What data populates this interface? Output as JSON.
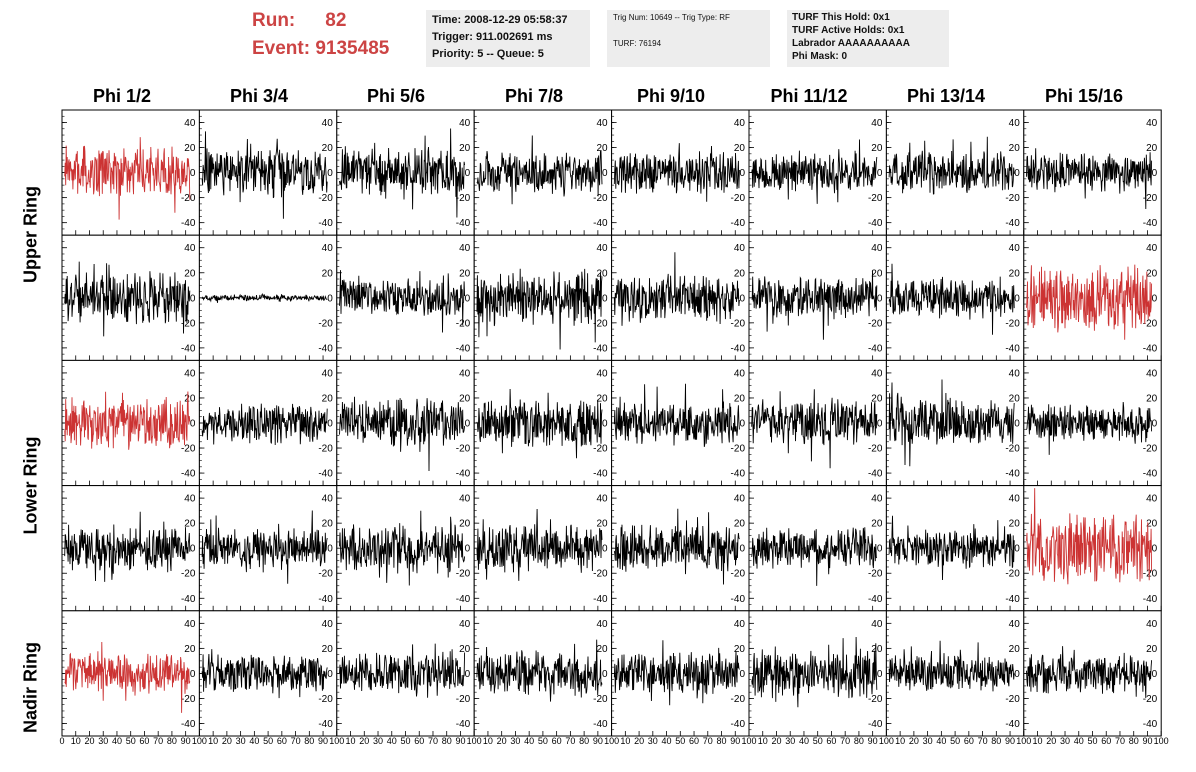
{
  "header": {
    "run_label": "Run:",
    "run_value": "82",
    "event_label": "Event:",
    "event_value": "9135485",
    "accent_color": "#cc4444"
  },
  "info_left": {
    "time": "Time: 2008-12-29 05:58:37",
    "trigger": "Trigger: 911.002691 ms",
    "priority": "Priority: 5 -- Queue: 5"
  },
  "info_mid": {
    "trig": "Trig Num: 10649 -- Trig Type: RF",
    "turf": "TURF: 76194"
  },
  "info_right": {
    "this_hold": "TURF This Hold: 0x1",
    "active_holds": "TURF Active Holds: 0x1",
    "labrador": "Labrador AAAAAAAAAA",
    "phi_mask": "Phi Mask: 0"
  },
  "columns": [
    "Phi 1/2",
    "Phi 3/4",
    "Phi 5/6",
    "Phi 7/8",
    "Phi 9/10",
    "Phi 11/12",
    "Phi 13/14",
    "Phi 15/16"
  ],
  "ring_labels": [
    "Upper Ring",
    "Lower Ring",
    "Nadir Ring"
  ],
  "chart_data": {
    "type": "line",
    "description_rows": 5,
    "description_cols": 8,
    "x_range": [
      0,
      100
    ],
    "y_range": [
      -50,
      50
    ],
    "y_ticks": [
      -40,
      -20,
      0,
      20,
      40
    ],
    "x_ticks": [
      0,
      10,
      20,
      30,
      40,
      50,
      60,
      70,
      80,
      90,
      100
    ],
    "trace_color": "#000000",
    "highlight_color": "#cc3333",
    "panels": [
      {
        "row": 0,
        "col": 0,
        "amplitude": 16,
        "highlight": true
      },
      {
        "row": 0,
        "col": 1,
        "amplitude": 15,
        "highlight": false
      },
      {
        "row": 0,
        "col": 2,
        "amplitude": 15,
        "highlight": false
      },
      {
        "row": 0,
        "col": 3,
        "amplitude": 13,
        "highlight": false
      },
      {
        "row": 0,
        "col": 4,
        "amplitude": 13,
        "highlight": false
      },
      {
        "row": 0,
        "col": 5,
        "amplitude": 12,
        "highlight": false
      },
      {
        "row": 0,
        "col": 6,
        "amplitude": 13,
        "highlight": false
      },
      {
        "row": 0,
        "col": 7,
        "amplitude": 12,
        "highlight": false
      },
      {
        "row": 1,
        "col": 0,
        "amplitude": 16,
        "highlight": false
      },
      {
        "row": 1,
        "col": 1,
        "amplitude": 2,
        "highlight": false
      },
      {
        "row": 1,
        "col": 2,
        "amplitude": 12,
        "highlight": false
      },
      {
        "row": 1,
        "col": 3,
        "amplitude": 17,
        "highlight": false
      },
      {
        "row": 1,
        "col": 4,
        "amplitude": 15,
        "highlight": false
      },
      {
        "row": 1,
        "col": 5,
        "amplitude": 13,
        "highlight": false
      },
      {
        "row": 1,
        "col": 6,
        "amplitude": 12,
        "highlight": false
      },
      {
        "row": 1,
        "col": 7,
        "amplitude": 22,
        "highlight": true
      },
      {
        "row": 2,
        "col": 0,
        "amplitude": 16,
        "highlight": true
      },
      {
        "row": 2,
        "col": 1,
        "amplitude": 12,
        "highlight": false
      },
      {
        "row": 2,
        "col": 2,
        "amplitude": 15,
        "highlight": false
      },
      {
        "row": 2,
        "col": 3,
        "amplitude": 15,
        "highlight": false
      },
      {
        "row": 2,
        "col": 4,
        "amplitude": 13,
        "highlight": false
      },
      {
        "row": 2,
        "col": 5,
        "amplitude": 15,
        "highlight": false
      },
      {
        "row": 2,
        "col": 6,
        "amplitude": 15,
        "highlight": false
      },
      {
        "row": 2,
        "col": 7,
        "amplitude": 12,
        "highlight": false
      },
      {
        "row": 3,
        "col": 0,
        "amplitude": 14,
        "highlight": false
      },
      {
        "row": 3,
        "col": 1,
        "amplitude": 12,
        "highlight": false
      },
      {
        "row": 3,
        "col": 2,
        "amplitude": 15,
        "highlight": false
      },
      {
        "row": 3,
        "col": 3,
        "amplitude": 15,
        "highlight": false
      },
      {
        "row": 3,
        "col": 4,
        "amplitude": 14,
        "highlight": false
      },
      {
        "row": 3,
        "col": 5,
        "amplitude": 13,
        "highlight": false
      },
      {
        "row": 3,
        "col": 6,
        "amplitude": 12,
        "highlight": false
      },
      {
        "row": 3,
        "col": 7,
        "amplitude": 22,
        "highlight": true
      },
      {
        "row": 4,
        "col": 0,
        "amplitude": 13,
        "highlight": true
      },
      {
        "row": 4,
        "col": 1,
        "amplitude": 12,
        "highlight": false
      },
      {
        "row": 4,
        "col": 2,
        "amplitude": 13,
        "highlight": false
      },
      {
        "row": 4,
        "col": 3,
        "amplitude": 14,
        "highlight": false
      },
      {
        "row": 4,
        "col": 4,
        "amplitude": 13,
        "highlight": false
      },
      {
        "row": 4,
        "col": 5,
        "amplitude": 15,
        "highlight": false
      },
      {
        "row": 4,
        "col": 6,
        "amplitude": 12,
        "highlight": false
      },
      {
        "row": 4,
        "col": 7,
        "amplitude": 12,
        "highlight": false
      }
    ]
  }
}
